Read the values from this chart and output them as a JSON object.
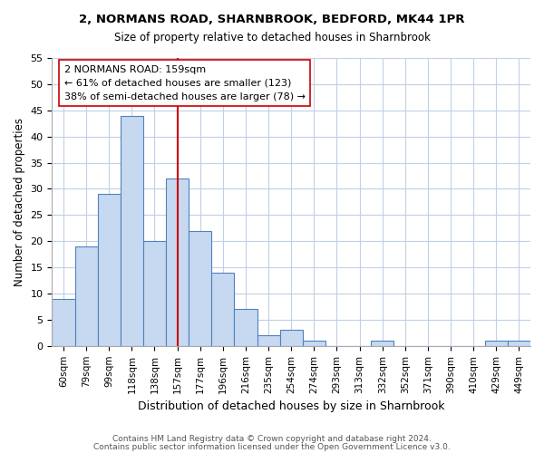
{
  "title1": "2, NORMANS ROAD, SHARNBROOK, BEDFORD, MK44 1PR",
  "title2": "Size of property relative to detached houses in Sharnbrook",
  "xlabel": "Distribution of detached houses by size in Sharnbrook",
  "ylabel": "Number of detached properties",
  "bar_labels": [
    "60sqm",
    "79sqm",
    "99sqm",
    "118sqm",
    "138sqm",
    "157sqm",
    "177sqm",
    "196sqm",
    "216sqm",
    "235sqm",
    "254sqm",
    "274sqm",
    "293sqm",
    "313sqm",
    "332sqm",
    "352sqm",
    "371sqm",
    "390sqm",
    "410sqm",
    "429sqm",
    "449sqm"
  ],
  "bar_values": [
    9,
    19,
    29,
    44,
    20,
    32,
    22,
    14,
    7,
    2,
    3,
    1,
    0,
    0,
    1,
    0,
    0,
    0,
    0,
    1,
    1
  ],
  "bar_color": "#c6d9f1",
  "bar_edge_color": "#4f81bd",
  "vline_x": 5,
  "vline_color": "#cc0000",
  "annotation_line1": "2 NORMANS ROAD: 159sqm",
  "annotation_line2": "← 61% of detached houses are smaller (123)",
  "annotation_line3": "38% of semi-detached houses are larger (78) →",
  "ylim": [
    0,
    55
  ],
  "yticks": [
    0,
    5,
    10,
    15,
    20,
    25,
    30,
    35,
    40,
    45,
    50,
    55
  ],
  "footer1": "Contains HM Land Registry data © Crown copyright and database right 2024.",
  "footer2": "Contains public sector information licensed under the Open Government Licence v3.0.",
  "background_color": "#ffffff",
  "grid_color": "#c0d0e8"
}
